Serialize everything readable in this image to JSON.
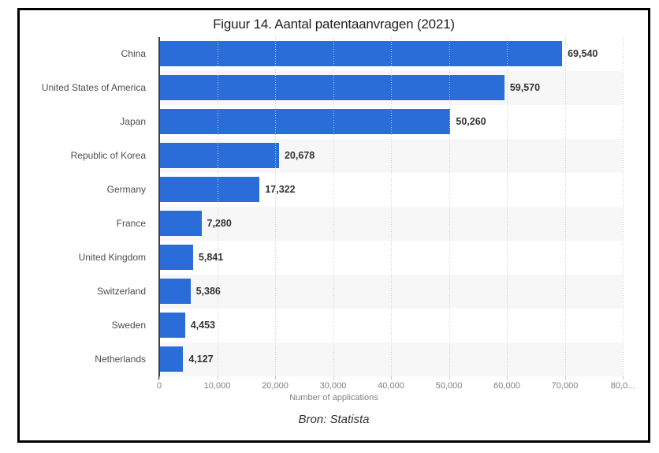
{
  "title": "Figuur 14. Aantal patentaanvragen (2021)",
  "caption": "Bron: Statista",
  "frame": {
    "border_color": "#000000",
    "background": "#ffffff"
  },
  "chart_data": {
    "type": "bar",
    "orientation": "horizontal",
    "title": "Figuur 14. Aantal patentaanvragen (2021)",
    "categories": [
      "China",
      "United States of America",
      "Japan",
      "Republic of Korea",
      "Germany",
      "France",
      "United Kingdom",
      "Switzerland",
      "Sweden",
      "Netherlands"
    ],
    "values": [
      69540,
      59570,
      50260,
      20678,
      17322,
      7280,
      5841,
      5386,
      4453,
      4127
    ],
    "value_labels": [
      "69,540",
      "59,570",
      "50,260",
      "20,678",
      "17,322",
      "7,280",
      "5,841",
      "5,386",
      "4,453",
      "4,127"
    ],
    "xlabel": "Number of applications",
    "ylabel": "",
    "xlim": [
      0,
      80000
    ],
    "xtick_values": [
      0,
      10000,
      20000,
      30000,
      40000,
      50000,
      60000,
      70000,
      80000
    ],
    "xtick_labels": [
      "0",
      "10,000",
      "20,000",
      "30,000",
      "40,000",
      "50,000",
      "60,000",
      "70,000",
      "80,0..."
    ],
    "grid": "vertical-dotted",
    "row_striping": "alternate-odd-rows",
    "legend": null,
    "colors": {
      "bar": "#2a6dd8",
      "row_stripe": "#f7f7f7",
      "gridline": "#cccccc",
      "axis": "#404040",
      "category_label": "#4d4d4d",
      "value_label": "#333333",
      "tick_label": "#808080"
    }
  }
}
